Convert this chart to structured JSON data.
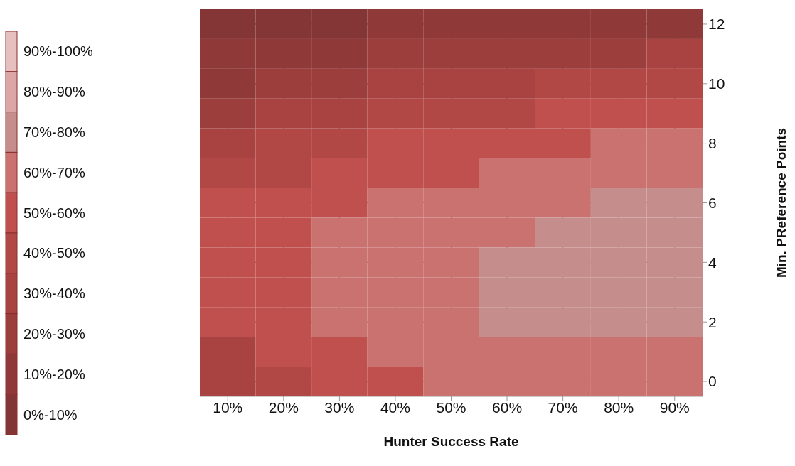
{
  "chart_data": {
    "type": "heatmap",
    "xlabel": "Hunter Success Rate",
    "ylabel": "Min. PReference Points",
    "categories": [
      "10%",
      "20%",
      "30%",
      "40%",
      "50%",
      "60%",
      "70%",
      "80%",
      "90%"
    ],
    "y_categories": [
      "12",
      null,
      "10",
      null,
      "8",
      null,
      "6",
      null,
      "4",
      null,
      "2",
      null,
      "0"
    ],
    "cells": [
      [
        5,
        6,
        9,
        10,
        13,
        15,
        16,
        17,
        18
      ],
      [
        10,
        15,
        17,
        20,
        22,
        25,
        27,
        28,
        30
      ],
      [
        18,
        23,
        28,
        32,
        35,
        38,
        40,
        41,
        41
      ],
      [
        27,
        33,
        38,
        42,
        45,
        48,
        50,
        52,
        52
      ],
      [
        35,
        42,
        45,
        51,
        53,
        55,
        58,
        60,
        61
      ],
      [
        43,
        48,
        53,
        57,
        59,
        60,
        63,
        65,
        67
      ],
      [
        52,
        53,
        58,
        62,
        63,
        65,
        67,
        70,
        72
      ],
      [
        55,
        56,
        61,
        65,
        66,
        68,
        71,
        73,
        75
      ],
      [
        57,
        58,
        63,
        66,
        68,
        71,
        74,
        76,
        77
      ],
      [
        56,
        58,
        63,
        66,
        68,
        72,
        75,
        77,
        78
      ],
      [
        52,
        56,
        61,
        65,
        67,
        70,
        72,
        74,
        75
      ],
      [
        37,
        50,
        58,
        62,
        64,
        66,
        67,
        68,
        69
      ],
      [
        30,
        40,
        52,
        58,
        60,
        62,
        63,
        64,
        65
      ]
    ],
    "clim": [
      0,
      100
    ],
    "cticks": [
      {
        "value": 5,
        "label": "0%-10%"
      },
      {
        "value": 15,
        "label": "10%-20%"
      },
      {
        "value": 25,
        "label": "20%-30%"
      },
      {
        "value": 35,
        "label": "30%-40%"
      },
      {
        "value": 45,
        "label": "40%-50%"
      },
      {
        "value": 55,
        "label": "50%-60%"
      },
      {
        "value": 65,
        "label": "60%-70%"
      },
      {
        "value": 75,
        "label": "70%-80%"
      },
      {
        "value": 85,
        "label": "80%-90%"
      },
      {
        "value": 95,
        "label": "90%-100%"
      }
    ],
    "colors": [
      "#843535",
      "#8f3a38",
      "#9b3e3c",
      "#a84341",
      "#b24846",
      "#c0504d",
      "#c97270",
      "#c58e8c",
      "#dba6a5",
      "#e6c0bf"
    ],
    "grid": true
  }
}
